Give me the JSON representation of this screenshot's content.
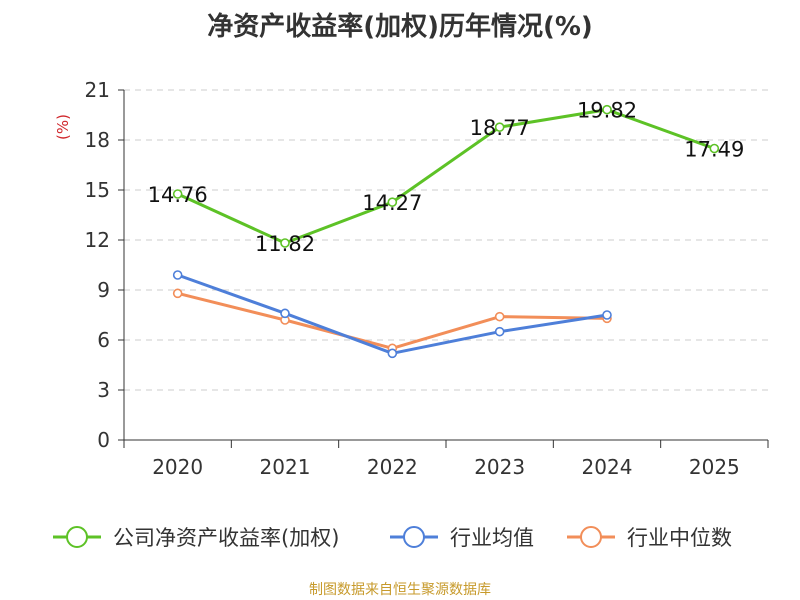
{
  "chart_data": {
    "type": "line",
    "title": "净资产收益率(加权)历年情况(%)",
    "ylabel": "(%)",
    "xlabel": "",
    "ylim": [
      0,
      21
    ],
    "yticks": [
      0,
      3,
      6,
      9,
      12,
      15,
      18,
      21
    ],
    "grid": "horizontal-dashed",
    "categories": [
      "2020",
      "2021",
      "2022",
      "2023",
      "2024",
      "2025"
    ],
    "legend_position": "bottom",
    "series": [
      {
        "name": "公司净资产收益率(加权)",
        "color": "#5dc226",
        "values": [
          14.76,
          11.82,
          14.27,
          18.77,
          19.82,
          17.49
        ],
        "labels": [
          "14.76",
          "11.82",
          "14.27",
          "18.77",
          "19.82",
          "17.49"
        ]
      },
      {
        "name": "行业均值",
        "color": "#4e7fd9",
        "values": [
          9.9,
          7.6,
          5.2,
          6.5,
          7.5,
          null
        ]
      },
      {
        "name": "行业中位数",
        "color": "#f28e59",
        "values": [
          8.8,
          7.2,
          5.5,
          7.4,
          7.3,
          null
        ]
      }
    ]
  },
  "footer": {
    "source": "制图数据来自恒生聚源数据库",
    "source_color": "#c79a2b"
  },
  "colors": {
    "axis": "#333333",
    "grid": "#cccccc",
    "ylabel": "#d0262b"
  }
}
